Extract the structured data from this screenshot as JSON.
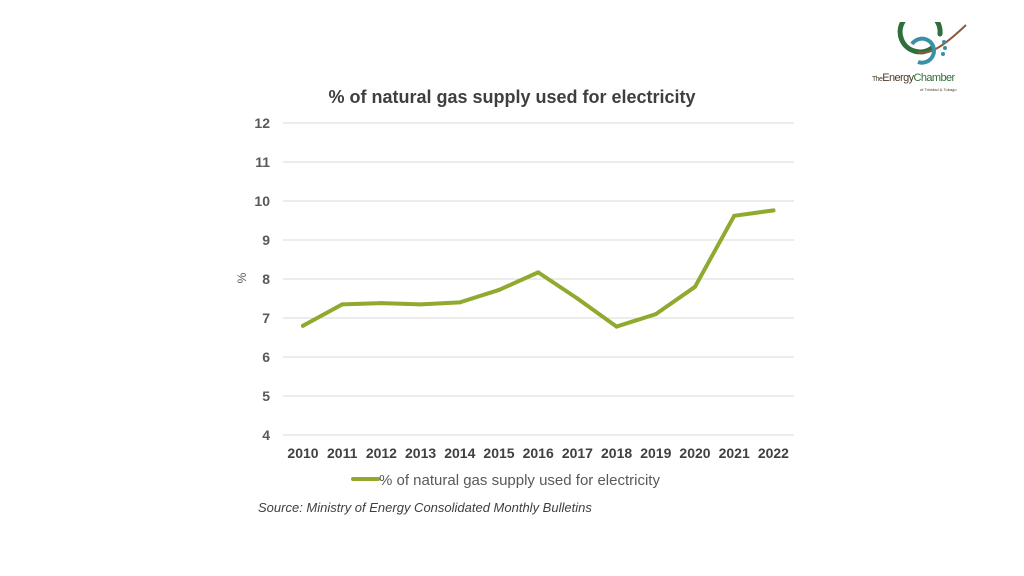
{
  "logo": {
    "name_prefix": "The",
    "name_energy": "Energy",
    "name_chamber": "Chamber",
    "subtitle": "of Trinidad & Tobago"
  },
  "source_note": "Source: Ministry of Energy Consolidated Monthly Bulletins",
  "colors": {
    "series": "#8faa2e",
    "grid": "#d9d9d9",
    "logo_green": "#2f6f3c",
    "logo_brown": "#8b5a3c",
    "logo_teal": "#3a8fa8"
  },
  "chart_data": {
    "type": "line",
    "title": "% of natural gas supply used for electricity",
    "xlabel": "",
    "ylabel": "%",
    "ylim": [
      4,
      12
    ],
    "yticks": [
      4,
      5,
      6,
      7,
      8,
      9,
      10,
      11,
      12
    ],
    "grid": true,
    "legend_position": "bottom-center",
    "categories": [
      "2010",
      "2011",
      "2012",
      "2013",
      "2014",
      "2015",
      "2016",
      "2017",
      "2018",
      "2019",
      "2020",
      "2021",
      "2022"
    ],
    "series": [
      {
        "name": "% of natural gas supply used for electricity",
        "values": [
          6.8,
          7.35,
          7.38,
          7.35,
          7.4,
          7.72,
          8.17,
          7.5,
          6.78,
          7.1,
          7.8,
          9.62,
          9.76
        ]
      }
    ]
  }
}
